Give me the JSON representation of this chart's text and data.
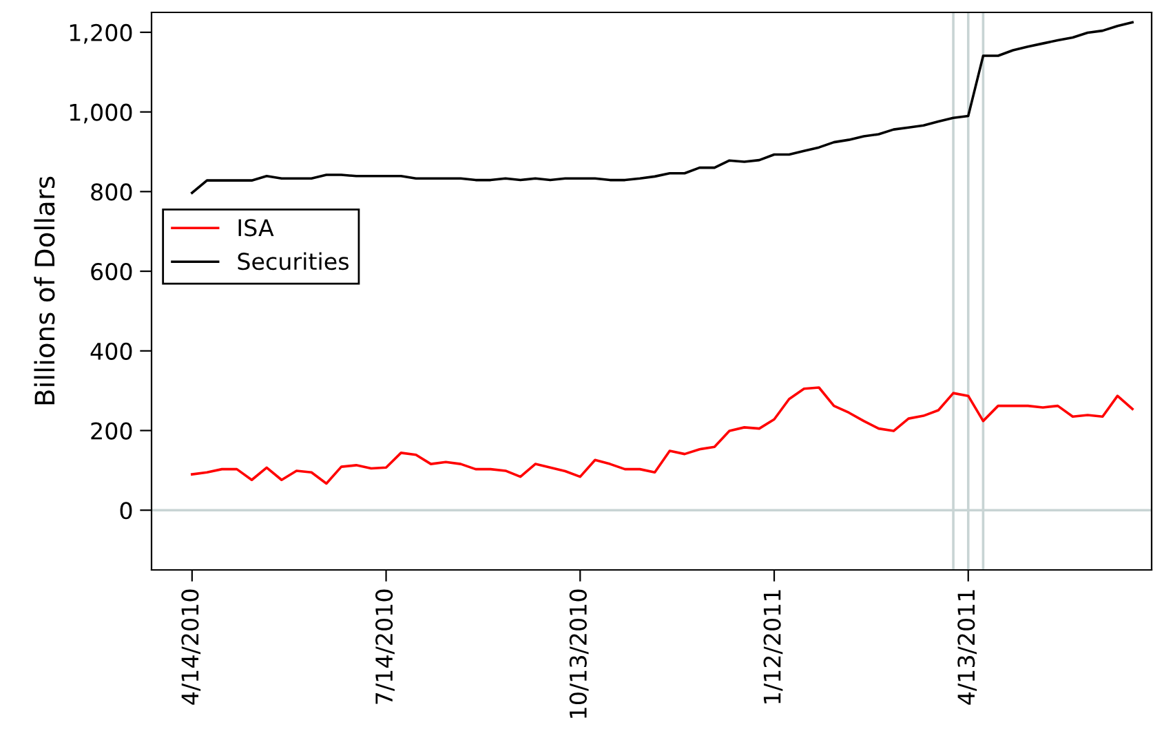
{
  "chart_data": {
    "type": "line",
    "ylabel": "Billions of Dollars",
    "x": [
      "2010-04-14",
      "2010-04-21",
      "2010-04-28",
      "2010-05-05",
      "2010-05-12",
      "2010-05-19",
      "2010-05-26",
      "2010-06-02",
      "2010-06-09",
      "2010-06-16",
      "2010-06-23",
      "2010-06-30",
      "2010-07-07",
      "2010-07-14",
      "2010-07-21",
      "2010-07-28",
      "2010-08-04",
      "2010-08-11",
      "2010-08-18",
      "2010-08-25",
      "2010-09-01",
      "2010-09-08",
      "2010-09-15",
      "2010-09-22",
      "2010-09-29",
      "2010-10-06",
      "2010-10-13",
      "2010-10-20",
      "2010-10-27",
      "2010-11-03",
      "2010-11-10",
      "2010-11-17",
      "2010-11-24",
      "2010-12-01",
      "2010-12-08",
      "2010-12-15",
      "2010-12-22",
      "2010-12-29",
      "2011-01-05",
      "2011-01-12",
      "2011-01-19",
      "2011-01-26",
      "2011-02-02",
      "2011-02-09",
      "2011-02-16",
      "2011-02-23",
      "2011-03-02",
      "2011-03-09",
      "2011-03-16",
      "2011-03-23",
      "2011-03-30",
      "2011-04-06",
      "2011-04-13",
      "2011-04-20",
      "2011-04-27",
      "2011-05-04",
      "2011-05-11",
      "2011-05-18",
      "2011-05-25",
      "2011-06-01",
      "2011-06-08",
      "2011-06-15",
      "2011-06-22",
      "2011-06-29"
    ],
    "series": [
      {
        "name": "ISA",
        "color": "#ff0000",
        "values": [
          90,
          95,
          103,
          103,
          76,
          107,
          76,
          99,
          95,
          67,
          109,
          113,
          105,
          107,
          144,
          139,
          116,
          121,
          116,
          103,
          103,
          99,
          84,
          116,
          107,
          98,
          84,
          126,
          116,
          103,
          103,
          95,
          149,
          141,
          153,
          159,
          199,
          208,
          205,
          228,
          279,
          305,
          308,
          262,
          245,
          224,
          205,
          199,
          230,
          237,
          251,
          294,
          287,
          224,
          262,
          262,
          262,
          258,
          262,
          235,
          239,
          235,
          287,
          254
        ]
      },
      {
        "name": "Securities",
        "color": "#000000",
        "values": [
          797,
          828,
          828,
          828,
          828,
          839,
          833,
          833,
          833,
          842,
          842,
          839,
          839,
          839,
          839,
          833,
          833,
          833,
          833,
          829,
          829,
          833,
          829,
          833,
          829,
          833,
          833,
          833,
          829,
          829,
          833,
          838,
          846,
          846,
          860,
          860,
          878,
          875,
          879,
          893,
          893,
          902,
          911,
          924,
          930,
          939,
          944,
          956,
          961,
          966,
          976,
          985,
          990,
          1141,
          1141,
          1155,
          1164,
          1172,
          1180,
          1187,
          1199,
          1204,
          1216,
          1225
        ]
      }
    ],
    "xlim": [
      "2010-03-26",
      "2011-07-08"
    ],
    "xticks": [
      {
        "value": "2010-04-14",
        "label": "4/14/2010"
      },
      {
        "value": "2010-07-14",
        "label": "7/14/2010"
      },
      {
        "value": "2010-10-13",
        "label": "10/13/2010"
      },
      {
        "value": "2011-01-12",
        "label": "1/12/2011"
      },
      {
        "value": "2011-04-13",
        "label": "4/13/2011"
      }
    ],
    "ylim": [
      -150,
      1250
    ],
    "yticks": [
      {
        "value": 0,
        "label": "0"
      },
      {
        "value": 200,
        "label": "200"
      },
      {
        "value": 400,
        "label": "400"
      },
      {
        "value": 600,
        "label": "600"
      },
      {
        "value": 800,
        "label": "800"
      },
      {
        "value": 1000,
        "label": "1,000"
      },
      {
        "value": 1200,
        "label": "1,200"
      }
    ],
    "ref_lines": [
      {
        "axis": "y",
        "value": 0,
        "color": "#c8d4d4"
      },
      {
        "axis": "x",
        "value": "2011-04-06",
        "color": "#c8d4d4"
      },
      {
        "axis": "x",
        "value": "2011-04-13",
        "color": "#c8d4d4"
      },
      {
        "axis": "x",
        "value": "2011-04-20",
        "color": "#c8d4d4"
      }
    ],
    "grid": false,
    "legend": "left",
    "line_style": "solid"
  }
}
